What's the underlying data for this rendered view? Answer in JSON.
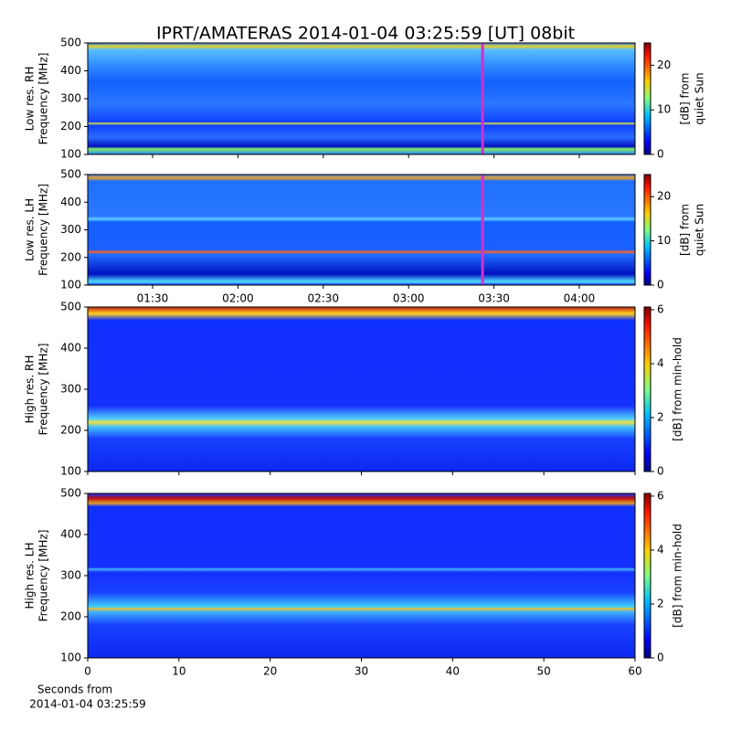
{
  "chart_data": [
    {
      "type": "heatmap",
      "title": "IPRT/AMATERAS 2014-01-04 03:25:59 [UT]   08bit",
      "ylabel": [
        "Low res. RH",
        "Frequency [MHz]"
      ],
      "ylim": [
        100,
        500
      ],
      "yticks": [
        100,
        200,
        300,
        400,
        500
      ],
      "colorbar_label": [
        "[dB] from",
        "quiet Sun"
      ],
      "clim": [
        0,
        25
      ],
      "cticks": [
        0,
        10,
        20
      ],
      "xlim": [
        67.2,
        259.6
      ],
      "marker_x": 206,
      "marker_color": "#d030d0"
    },
    {
      "type": "heatmap",
      "ylabel": [
        "Low res. LH",
        "Frequency [MHz]"
      ],
      "ylim": [
        100,
        500
      ],
      "yticks": [
        100,
        200,
        300,
        400,
        500
      ],
      "colorbar_label": [
        "[dB] from",
        "quiet Sun"
      ],
      "clim": [
        0,
        25
      ],
      "cticks": [
        0,
        10,
        20
      ],
      "xlim": [
        67.2,
        259.6
      ],
      "xticks": [
        {
          "value": 90,
          "label": "01:30"
        },
        {
          "value": 120,
          "label": "02:00"
        },
        {
          "value": 150,
          "label": "02:30"
        },
        {
          "value": 180,
          "label": "03:00"
        },
        {
          "value": 210,
          "label": "03:30"
        },
        {
          "value": 240,
          "label": "04:00"
        }
      ],
      "marker_x": 206,
      "marker_color": "#d030d0"
    },
    {
      "type": "heatmap",
      "ylabel": [
        "High res. RH",
        "Frequency [MHz]"
      ],
      "ylim": [
        100,
        500
      ],
      "yticks": [
        100,
        200,
        300,
        400,
        500
      ],
      "colorbar_label": [
        "[dB] from min-hold"
      ],
      "clim": [
        0,
        6.1
      ],
      "cticks": [
        0,
        2,
        4,
        6
      ],
      "xlim": [
        0,
        60
      ]
    },
    {
      "type": "heatmap",
      "ylabel": [
        "High res. LH",
        "Frequency [MHz]"
      ],
      "ylim": [
        100,
        500
      ],
      "yticks": [
        100,
        200,
        300,
        400,
        500
      ],
      "colorbar_label": [
        "[dB] from min-hold"
      ],
      "clim": [
        0,
        6.1
      ],
      "cticks": [
        0,
        2,
        4,
        6
      ],
      "xlim": [
        0,
        60
      ],
      "xticks": [
        0,
        10,
        20,
        30,
        40,
        50,
        60
      ],
      "xlabel": [
        "Seconds from",
        "2014-01-04 03:25:59"
      ]
    }
  ]
}
